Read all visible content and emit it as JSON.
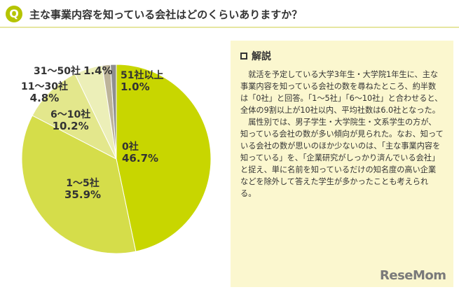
{
  "header": {
    "badge": "Q",
    "title": "主な事業内容を知っている会社はどのくらいありますか？"
  },
  "colors": {
    "accent": "#b5c400",
    "slices": [
      "#c8d600",
      "#d5dd4a",
      "#e3e78c",
      "#ecefb8",
      "#bdb49a",
      "#8f8f8f"
    ],
    "note_bg": "#fbf7cf"
  },
  "chart_data": {
    "type": "pie",
    "title": "",
    "slices": [
      {
        "category": "0社",
        "value": 46.7,
        "label": "46.7%"
      },
      {
        "category": "1〜5社",
        "value": 35.9,
        "label": "35.9%"
      },
      {
        "category": "6〜10社",
        "value": 10.2,
        "label": "10.2%"
      },
      {
        "category": "11〜30社",
        "value": 4.8,
        "label": "4.8%"
      },
      {
        "category": "31〜50社",
        "value": 1.4,
        "label": "1.4%"
      },
      {
        "category": "51社以上",
        "value": 1.0,
        "label": "1.0%"
      }
    ]
  },
  "note": {
    "heading": "解説",
    "paragraphs": [
      "就活を予定している大学3年生・大学院1年生に、主な事業内容を知っている会社の数を尋ねたところ、約半数は「0社」と回答。「1〜5社」「6〜10社」と合わせると、全体の9割以上が10社以内、平均社数は6.0社となった。",
      "属性別では、男子学生・大学院生・文系学生の方が、知っている会社の数が多い傾向が見られた。なお、知っている会社の数が思いのほか少ないのは、「主な事業内容を知っている」を、「企業研究がしっかり済んでいる会社」と捉え、単に名前を知っているだけの知名度の高い企業などを除外して答えた学生が多かったことも考えられる。"
    ]
  },
  "logo": {
    "text": "ReseMom"
  }
}
